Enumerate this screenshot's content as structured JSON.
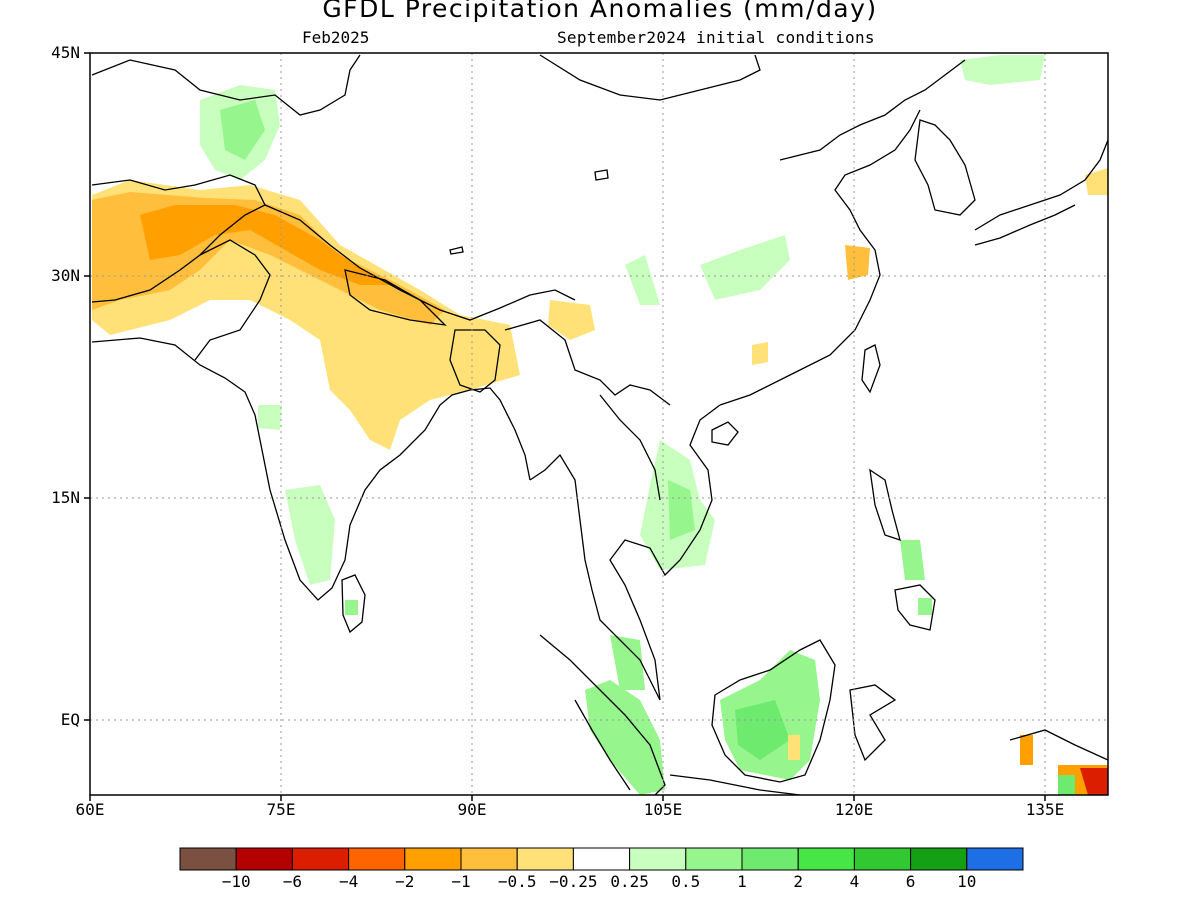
{
  "title": "GFDL Precipitation Anomalies (mm/day)",
  "subtitle_left": "Feb2025",
  "subtitle_right": "September2024 initial conditions",
  "lat_labels": [
    "45N",
    "30N",
    "15N",
    "EQ"
  ],
  "lon_labels": [
    "60E",
    "75E",
    "90E",
    "105E",
    "120E",
    "135E"
  ],
  "colorbar": {
    "colors": [
      "#7a5040",
      "#b40000",
      "#dc1e00",
      "#ff6400",
      "#ffa000",
      "#ffbe3c",
      "#ffe178",
      "#ffffff",
      "#c8ffbe",
      "#96f58c",
      "#6eeb6e",
      "#46e646",
      "#32c832",
      "#14a014",
      "#1e6ee6"
    ],
    "labels": [
      "-10",
      "-6",
      "-4",
      "-2",
      "-1",
      "-0.5",
      "-0.25",
      "0.25",
      "0.5",
      "1",
      "2",
      "4",
      "6",
      "10"
    ]
  },
  "chart_data": {
    "type": "heatmap",
    "title": "GFDL Precipitation Anomalies (mm/day)",
    "lon_range": [
      60,
      140
    ],
    "lat_range": [
      -5,
      45
    ],
    "grid": "dotted at 15 degree intervals",
    "regions": [
      {
        "area": "Afghanistan-Pakistan-N India (Himalayan foothills)",
        "anomaly_mm_day": [
          -1,
          -0.5
        ]
      },
      {
        "area": "Himalaya / Nepal / Tibetan margin",
        "anomaly_mm_day": [
          -2,
          -1
        ]
      },
      {
        "area": "Central & NE India, Bangladesh",
        "anomaly_mm_day": [
          -0.5,
          -0.25
        ]
      },
      {
        "area": "Tajikistan / Kyrgyzstan",
        "anomaly_mm_day": [
          0.25,
          0.5
        ]
      },
      {
        "area": "Sumatra",
        "anomaly_mm_day": [
          0.5,
          1
        ]
      },
      {
        "area": "Borneo (Kalimantan)",
        "anomaly_mm_day": [
          0.5,
          1
        ]
      },
      {
        "area": "Central China patches",
        "anomaly_mm_day": [
          0.25,
          0.5
        ]
      },
      {
        "area": "Indochina / Vietnam",
        "anomaly_mm_day": [
          0.25,
          0.5
        ]
      },
      {
        "area": "New Guinea (SE corner)",
        "anomaly_mm_day": [
          -4,
          -1
        ]
      }
    ]
  }
}
